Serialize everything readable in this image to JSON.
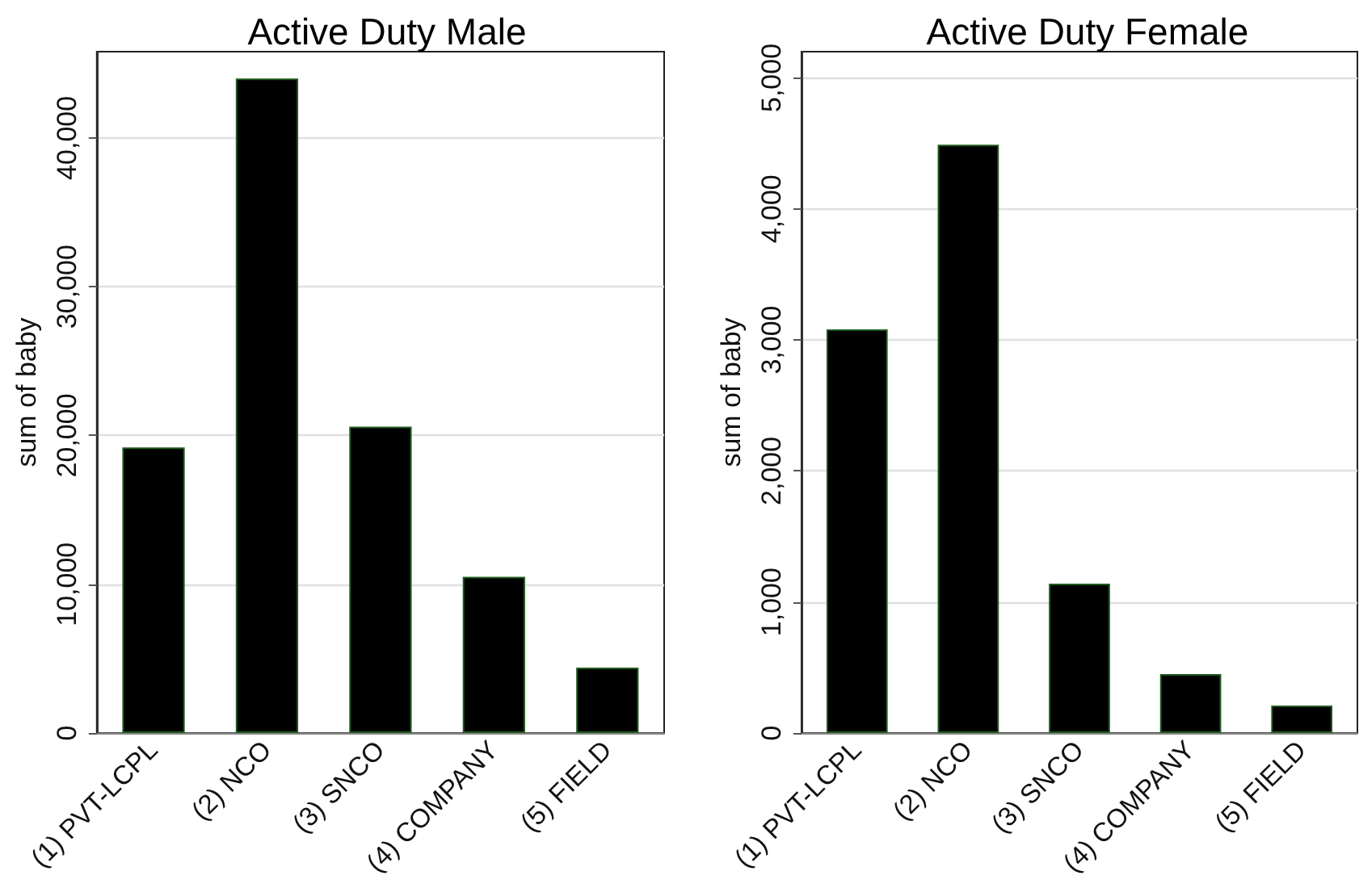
{
  "chart_data": [
    {
      "type": "bar",
      "title": "Active Duty Male",
      "ylabel": "sum of baby",
      "categories": [
        "(1) PVT-LCPL",
        "(2) NCO",
        "(3) SNCO",
        "(4) COMPANY",
        "(5) FIELD"
      ],
      "values": [
        19200,
        44000,
        20600,
        10500,
        4400
      ],
      "color": "#000000",
      "ylim": [
        0,
        45800
      ],
      "yticks": [
        0,
        {
          "value": 10000,
          "label": "10,000"
        },
        {
          "value": 20000,
          "label": "20,000"
        },
        {
          "value": 30000,
          "label": "30,000"
        },
        {
          "value": 40000,
          "label": "40,000"
        }
      ],
      "grid": "y"
    },
    {
      "type": "bar",
      "title": "Active Duty Female",
      "ylabel": "sum of baby",
      "categories": [
        "(1) PVT-LCPL",
        "(2) NCO",
        "(3) SNCO",
        "(4) COMPANY",
        "(5) FIELD"
      ],
      "values": [
        3080,
        4490,
        1140,
        450,
        210
      ],
      "color": "#000000",
      "ylim": [
        0,
        5200
      ],
      "yticks": [
        0,
        {
          "value": 1000,
          "label": "1,000"
        },
        {
          "value": 2000,
          "label": "2,000"
        },
        {
          "value": 3000,
          "label": "3,000"
        },
        {
          "value": 4000,
          "label": "4,000"
        },
        {
          "value": 5000,
          "label": "5,000"
        }
      ],
      "grid": "y"
    }
  ]
}
